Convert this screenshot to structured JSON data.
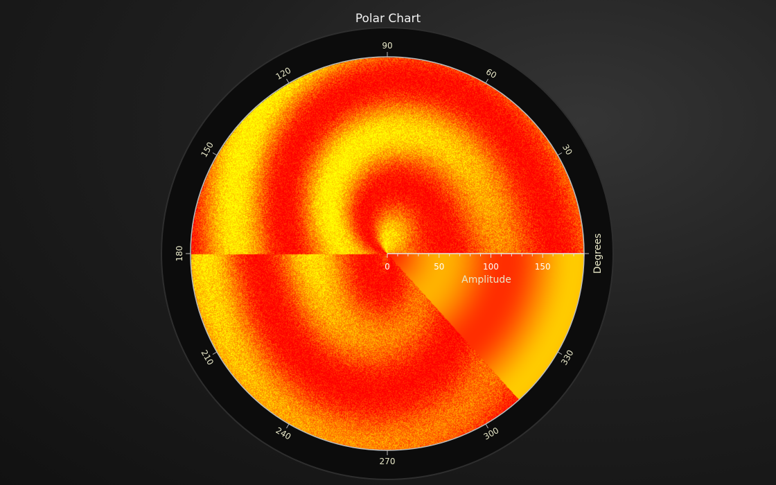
{
  "colors": {
    "background": "#1b1b1b",
    "axis_ring": "#0c0c0c",
    "axis_line": "#bdbdbd",
    "tick_label": "#e8e8c8",
    "title": "#f2f2f2",
    "palette": [
      "#ff0000",
      "#ff3c00",
      "#ff8000",
      "#ffc000",
      "#ffff00"
    ]
  },
  "chart_data": {
    "type": "heatmap",
    "title": "Polar Chart",
    "coordinate_system": "polar",
    "angular_axis": {
      "title": "Degrees",
      "range": [
        0,
        360
      ],
      "ticks": [
        0,
        30,
        60,
        90,
        120,
        150,
        180,
        210,
        240,
        270,
        300,
        330
      ],
      "tick_labels": [
        "",
        "30",
        "60",
        "90",
        "120",
        "150",
        "180",
        "210",
        "240",
        "270",
        "300",
        "330"
      ]
    },
    "radial_axis": {
      "title": "Amplitude",
      "range": [
        0,
        190
      ],
      "ticks": [
        0,
        50,
        100,
        150
      ],
      "tick_labels": [
        "0",
        "50",
        "100",
        "150"
      ]
    },
    "heatmap": {
      "value_range": [
        0,
        1
      ],
      "palette_stops": [
        0,
        0.25,
        0.5,
        0.75,
        1
      ],
      "noisy_sector_degrees": [
        -360,
        0
      ],
      "smooth_sector_degrees": [
        -48,
        0
      ]
    },
    "grid": false,
    "legend": "none"
  }
}
